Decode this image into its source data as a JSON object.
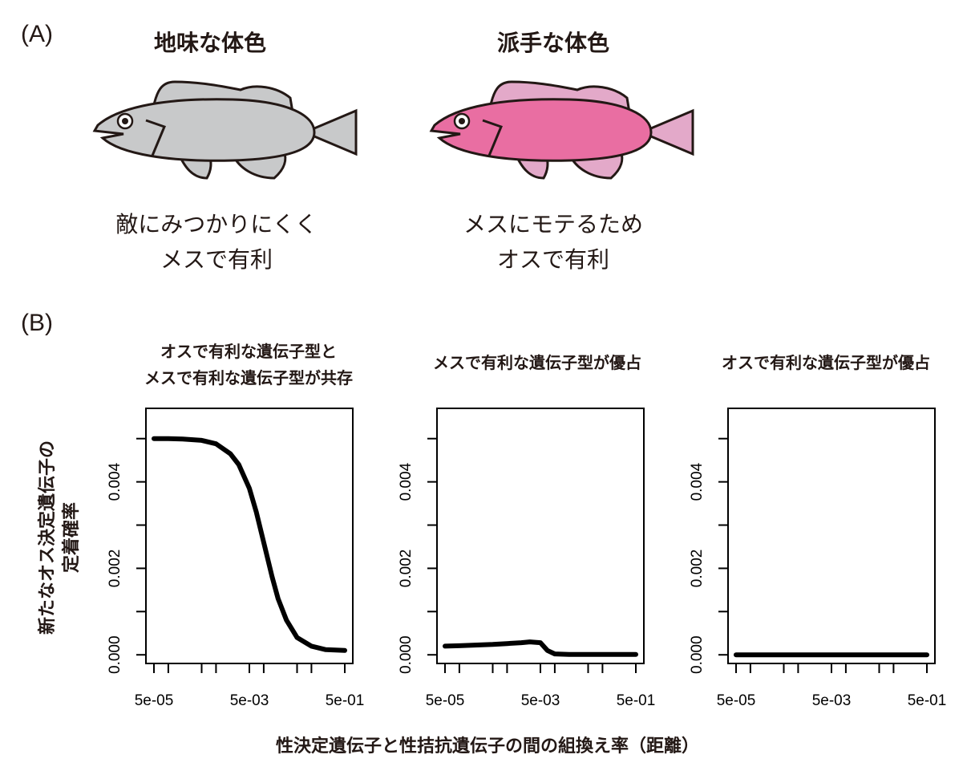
{
  "panel_a": {
    "label": "(A)",
    "fish": [
      {
        "title": "地味な体色",
        "desc_line1": "敵にみつかりにくく",
        "desc_line2": "メスで有利",
        "body_color": "#c8c9ca",
        "fin_color": "#c8c9ca"
      },
      {
        "title": "派手な体色",
        "desc_line1": "メスにモテるため",
        "desc_line2": "オスで有利",
        "body_color": "#e96ea2",
        "fin_color": "#e3a9c9"
      }
    ]
  },
  "panel_b": {
    "label": "(B)",
    "ylabel_line1": "新たなオス決定遺伝子の",
    "ylabel_line2": "定着確率",
    "xlabel": "性決定遺伝子と性拮抗遺伝子の間の組換え率（距離）",
    "plot_titles": [
      [
        "オスで有利な遺伝子型と",
        "メスで有利な遺伝子型が共存"
      ],
      [
        "メスで有利な遺伝子型が優占"
      ],
      [
        "オスで有利な遺伝子型が優占"
      ]
    ]
  },
  "chart_data": [
    {
      "type": "line",
      "title": "オスで有利な遺伝子型とメスで有利な遺伝子型が共存",
      "xscale": "log",
      "xlim": [
        3e-05,
        0.5
      ],
      "ylim": [
        -0.0002,
        0.0057
      ],
      "x_ticks": [
        5e-05,
        0.0001,
        0.0005,
        0.001,
        0.005,
        0.01,
        0.05,
        0.1,
        0.5
      ],
      "x_tick_labels": [
        "5e-05",
        "",
        "",
        "",
        "5e-03",
        "",
        "",
        "",
        "5e-01"
      ],
      "y_ticks": [
        0,
        0.001,
        0.002,
        0.003,
        0.004,
        0.005
      ],
      "y_tick_labels": [
        "0.000",
        "",
        "0.002",
        "",
        "0.004",
        ""
      ],
      "x": [
        5e-05,
        0.0001,
        0.0002,
        0.0005,
        0.001,
        0.002,
        0.003,
        0.005,
        0.007,
        0.01,
        0.015,
        0.02,
        0.03,
        0.05,
        0.1,
        0.2,
        0.5
      ],
      "y": [
        0.005,
        0.005,
        0.00499,
        0.00496,
        0.00488,
        0.00465,
        0.0044,
        0.00385,
        0.0033,
        0.0026,
        0.0018,
        0.0013,
        0.0008,
        0.0004,
        0.0002,
        0.00012,
        0.0001
      ]
    },
    {
      "type": "line",
      "title": "メスで有利な遺伝子型が優占",
      "xscale": "log",
      "xlim": [
        3e-05,
        0.5
      ],
      "ylim": [
        -0.0002,
        0.0057
      ],
      "x_ticks": [
        5e-05,
        0.0001,
        0.0005,
        0.001,
        0.005,
        0.01,
        0.05,
        0.1,
        0.5
      ],
      "x_tick_labels": [
        "5e-05",
        "",
        "",
        "",
        "5e-03",
        "",
        "",
        "",
        "5e-01"
      ],
      "y_ticks": [
        0,
        0.001,
        0.002,
        0.003,
        0.004,
        0.005
      ],
      "y_tick_labels": [
        "0.000",
        "",
        "0.002",
        "",
        "0.004",
        ""
      ],
      "x": [
        5e-05,
        0.0001,
        0.0005,
        0.001,
        0.002,
        0.003,
        0.005,
        0.007,
        0.01,
        0.02,
        0.05,
        0.1,
        0.5
      ],
      "y": [
        0.0002,
        0.00021,
        0.00024,
        0.00026,
        0.00028,
        0.0003,
        0.00028,
        0.0001,
        2e-05,
        1e-05,
        1e-05,
        1e-05,
        1e-05
      ]
    },
    {
      "type": "line",
      "title": "オスで有利な遺伝子型が優占",
      "xscale": "log",
      "xlim": [
        3e-05,
        0.5
      ],
      "ylim": [
        -0.0002,
        0.0057
      ],
      "x_ticks": [
        5e-05,
        0.0001,
        0.0005,
        0.001,
        0.005,
        0.01,
        0.05,
        0.1,
        0.5
      ],
      "x_tick_labels": [
        "5e-05",
        "",
        "",
        "",
        "5e-03",
        "",
        "",
        "",
        "5e-01"
      ],
      "y_ticks": [
        0,
        0.001,
        0.002,
        0.003,
        0.004,
        0.005
      ],
      "y_tick_labels": [
        "0.000",
        "",
        "0.002",
        "",
        "0.004",
        ""
      ],
      "x": [
        5e-05,
        0.0005,
        0.005,
        0.05,
        0.5
      ],
      "y": [
        0,
        0,
        0,
        0,
        0
      ]
    }
  ]
}
